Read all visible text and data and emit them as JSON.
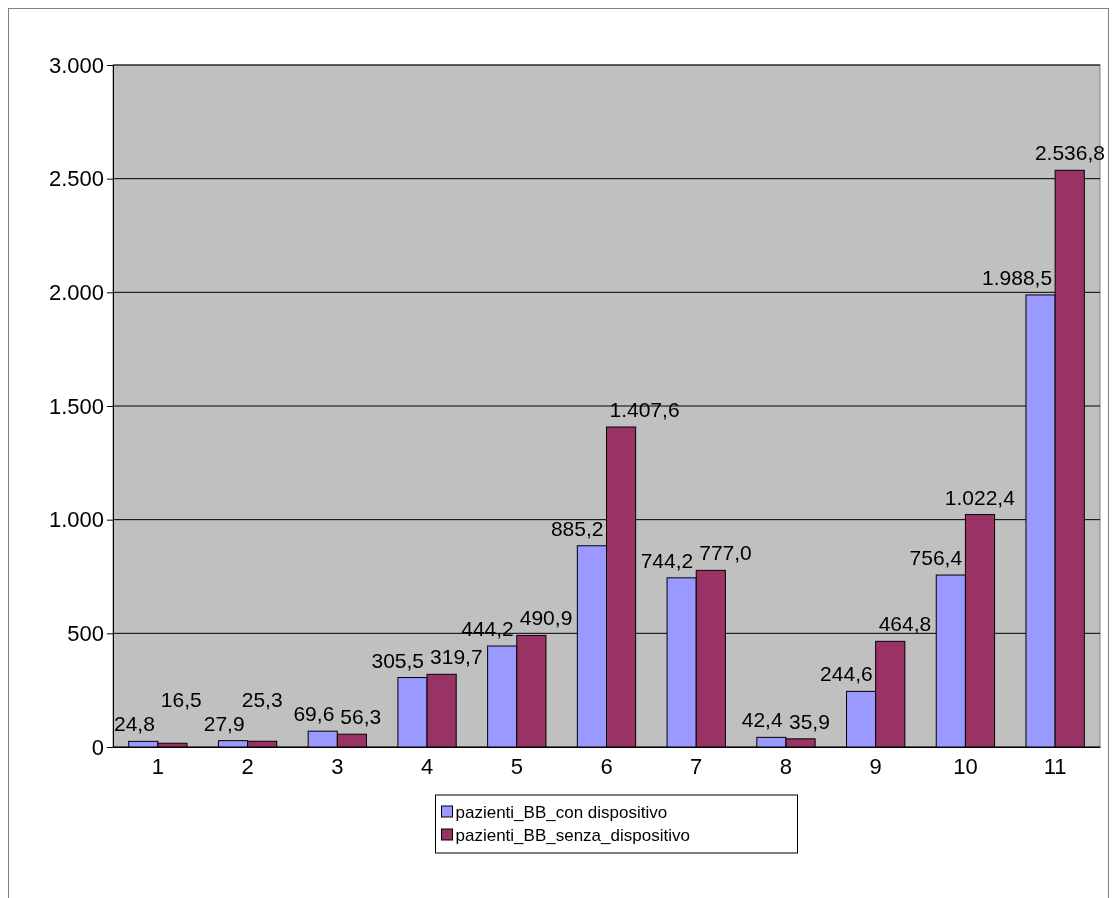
{
  "chart_data": {
    "type": "bar",
    "categories": [
      "1",
      "2",
      "3",
      "4",
      "5",
      "6",
      "7",
      "8",
      "9",
      "10",
      "11"
    ],
    "series": [
      {
        "name": "pazienti_BB_con dispositivo",
        "color": "#9999ff",
        "values": [
          24.8,
          27.9,
          69.6,
          305.5,
          444.2,
          885.2,
          744.2,
          42.4,
          244.6,
          756.4,
          1988.5
        ],
        "value_labels": [
          "24,8",
          "27,9",
          "69,6",
          "305,5",
          "444,2",
          "885,2",
          "744,2",
          "42,4",
          "244,6",
          "756,4",
          "1.988,5"
        ]
      },
      {
        "name": "pazienti_BB_senza_dispositivo",
        "color": "#993366",
        "values": [
          16.5,
          25.3,
          56.3,
          319.7,
          490.9,
          1407.6,
          777.0,
          35.9,
          464.8,
          1022.4,
          2536.8
        ],
        "value_labels": [
          "16,5",
          "25,3",
          "56,3",
          "319,7",
          "490,9",
          "1.407,6",
          "777,0",
          "35,9",
          "464,8",
          "1.022,4",
          "2.536,8"
        ]
      }
    ],
    "ylim": [
      0,
      3000
    ],
    "yticks": [
      0,
      500,
      {
        "value": 1000,
        "label": "1.000"
      },
      {
        "value": 1500,
        "label": "1.500"
      },
      {
        "value": 2000,
        "label": "2.000"
      },
      {
        "value": 2500,
        "label": "2.500"
      },
      {
        "value": 3000,
        "label": "3.000"
      }
    ],
    "grid": "y",
    "legend": "bottom"
  }
}
